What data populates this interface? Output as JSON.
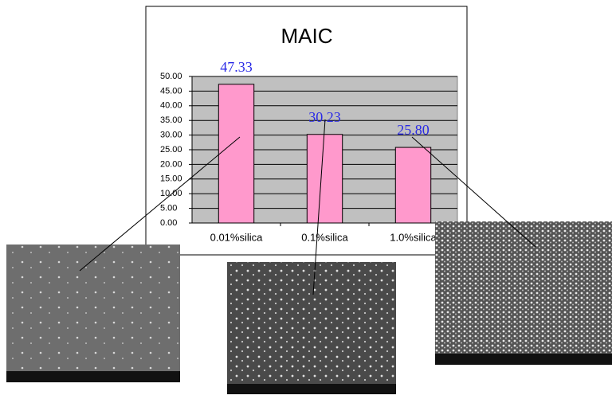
{
  "chart_data": {
    "type": "bar",
    "title": "MAIC",
    "categories": [
      "0.01%silica",
      "0.1%silica",
      "1.0%silica"
    ],
    "values": [
      47.33,
      30.23,
      25.8
    ],
    "value_labels": [
      "47.33",
      "30.23",
      "25.80"
    ],
    "color": "#ff99cc",
    "ylim": [
      0,
      50
    ],
    "yticks": [
      {
        "value": 0,
        "label": "0.00"
      },
      {
        "value": 5,
        "label": "5.00"
      },
      {
        "value": 10,
        "label": "10.00"
      },
      {
        "value": 15,
        "label": "15.00"
      },
      {
        "value": 20,
        "label": "20.00"
      },
      {
        "value": 25,
        "label": "25.00"
      },
      {
        "value": 30,
        "label": "30.00"
      },
      {
        "value": 35,
        "label": "35.00"
      },
      {
        "value": 40,
        "label": "40.00"
      },
      {
        "value": 45,
        "label": "45.00"
      },
      {
        "value": 50,
        "label": "50.00"
      }
    ],
    "grid": true
  }
}
